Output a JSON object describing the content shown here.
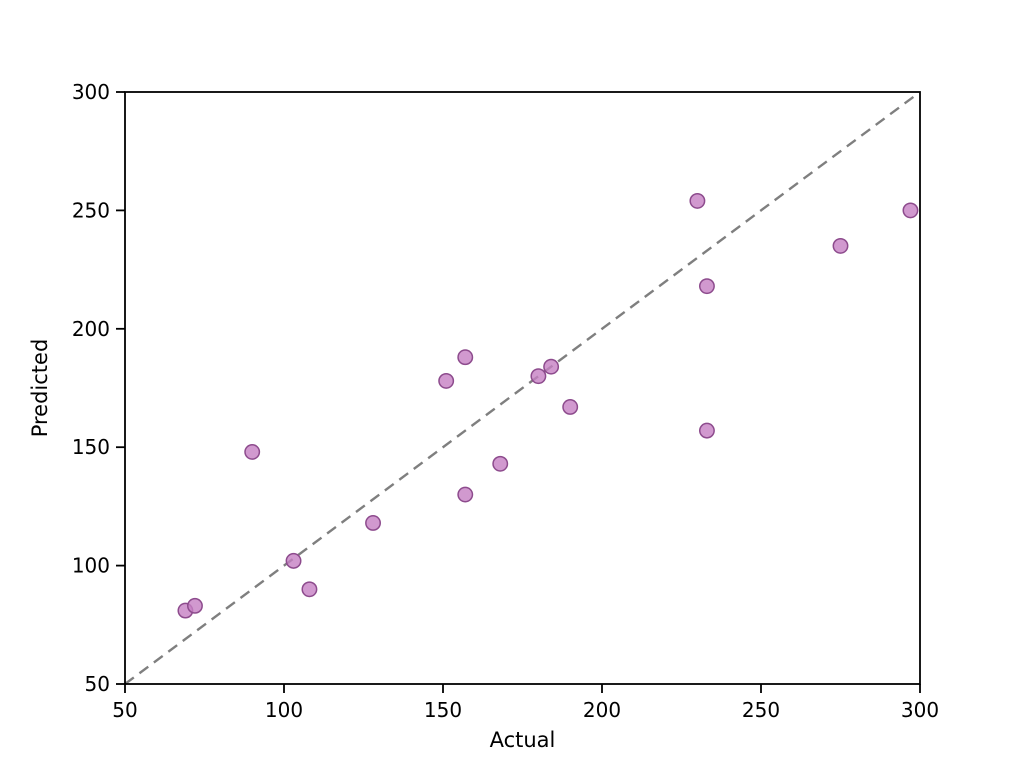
{
  "figure": {
    "background": "#ffffff"
  },
  "chart_data": {
    "type": "scatter",
    "title": "",
    "xlabel": "Actual",
    "ylabel": "Predicted",
    "xlim": [
      50,
      300
    ],
    "ylim": [
      50,
      300
    ],
    "xticks": [
      50,
      100,
      150,
      200,
      250,
      300
    ],
    "yticks": [
      50,
      100,
      150,
      200,
      250,
      300
    ],
    "grid": false,
    "legend_position": "none",
    "points": [
      [
        69,
        81
      ],
      [
        72,
        83
      ],
      [
        90,
        148
      ],
      [
        103,
        102
      ],
      [
        108,
        90
      ],
      [
        128,
        118
      ],
      [
        151,
        178
      ],
      [
        157,
        188
      ],
      [
        157,
        130
      ],
      [
        168,
        143
      ],
      [
        180,
        180
      ],
      [
        184,
        184
      ],
      [
        190,
        167
      ],
      [
        230,
        254
      ],
      [
        233,
        218
      ],
      [
        233,
        157
      ],
      [
        275,
        235
      ],
      [
        297,
        250
      ]
    ],
    "identity_line": {
      "x": [
        50,
        300
      ],
      "y": [
        50,
        300
      ],
      "style": "dashed"
    },
    "colors": {
      "point_fill": "#c57fc3",
      "point_edge": "#8d4b8d",
      "line": "#7f7f7f",
      "axis": "#000000"
    }
  }
}
